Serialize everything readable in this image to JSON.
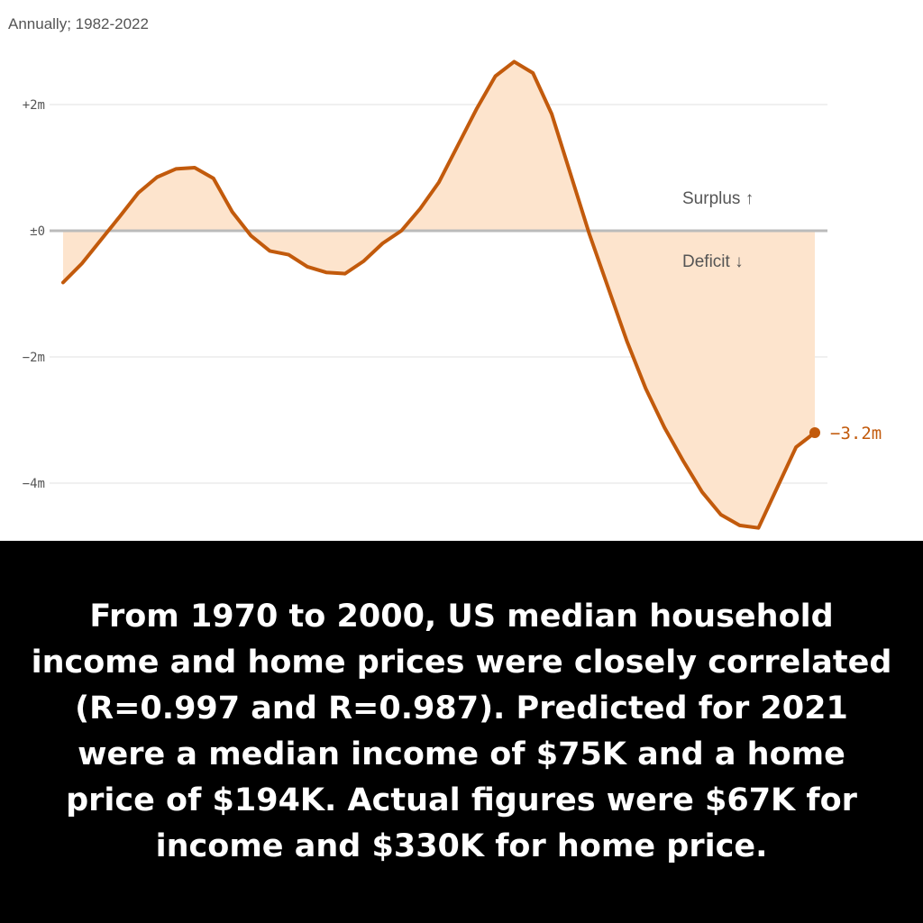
{
  "chart_data": {
    "type": "area",
    "subtitle": "Annually; 1982-2022",
    "y_ticks": [
      {
        "value": 2,
        "label": "+2m"
      },
      {
        "value": 0,
        "label": "±0"
      },
      {
        "value": -2,
        "label": "−2m"
      },
      {
        "value": -4,
        "label": "−4m"
      }
    ],
    "ylim": [
      -4.75,
      2.8
    ],
    "xlim": [
      1982,
      2022
    ],
    "grid": true,
    "annotations": {
      "surplus": "Surplus ↑",
      "deficit": "Deficit ↓"
    },
    "end_label": "−3.2m",
    "series": [
      {
        "x": [
          1982,
          1983,
          1984,
          1985,
          1986,
          1987,
          1988,
          1989,
          1990,
          1991,
          1992,
          1993,
          1994,
          1995,
          1996,
          1997,
          1998,
          1999,
          2000,
          2001,
          2002,
          2003,
          2004,
          2005,
          2006,
          2007,
          2008,
          2009,
          2010,
          2011,
          2012,
          2013,
          2014,
          2015,
          2016,
          2017,
          2018,
          2019,
          2020,
          2021,
          2022
        ],
        "y": [
          -0.82,
          -0.52,
          -0.15,
          0.22,
          0.6,
          0.85,
          0.98,
          1.0,
          0.83,
          0.3,
          -0.08,
          -0.32,
          -0.38,
          -0.57,
          -0.66,
          -0.68,
          -0.48,
          -0.2,
          0.0,
          0.35,
          0.77,
          1.35,
          1.93,
          2.45,
          2.68,
          2.5,
          1.85,
          0.9,
          -0.05,
          -0.9,
          -1.75,
          -2.5,
          -3.12,
          -3.65,
          -4.14,
          -4.5,
          -4.67,
          -4.71,
          -4.07,
          -3.43,
          -3.2
        ]
      }
    ],
    "colors": {
      "line": "#c25a0c",
      "fill": "#fde4cd",
      "zero_line": "#bbbbbb",
      "grid": "#e2e2e2",
      "caption_bg": "#000000",
      "caption_text": "#ffffff"
    }
  },
  "caption": "From 1970 to 2000, US median household income and home prices were closely correlated (R=0.997 and R=0.987). Predicted for 2021 were a median income of $75K and a home price of $194K. Actual figures were $67K for income and $330K for home price."
}
